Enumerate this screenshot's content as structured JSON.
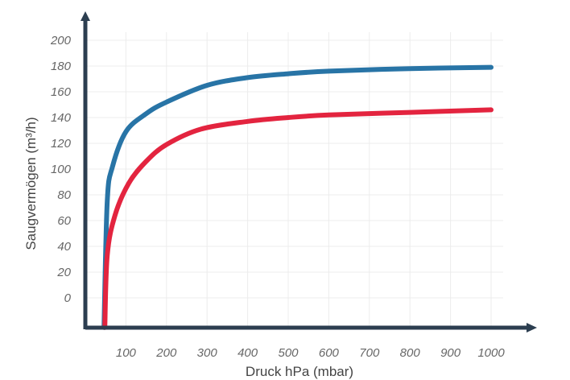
{
  "chart_data": {
    "type": "line",
    "title": "",
    "xlabel": "Druck hPa (mbar)",
    "ylabel": "Saugvermögen (m³/h)",
    "xlim": [
      0,
      1100
    ],
    "ylim": [
      -23,
      225
    ],
    "xticks": [
      "100",
      "200",
      "300",
      "400",
      "500",
      "600",
      "700",
      "800",
      "900",
      "1000"
    ],
    "yticks": [
      "0",
      "20",
      "40",
      "60",
      "80",
      "100",
      "120",
      "140",
      "160",
      "180",
      "200"
    ],
    "grid": true,
    "legend": "none",
    "series": [
      {
        "color": "#2874a6",
        "x": [
          46,
          54,
          67,
          100,
          150,
          200,
          300,
          400,
          500,
          600,
          800,
          1000
        ],
        "y": [
          -23,
          75,
          102,
          129,
          143,
          152,
          165,
          171,
          174,
          176,
          178,
          179
        ]
      },
      {
        "color": "#e3243f",
        "x": [
          48,
          54,
          73,
          107,
          150,
          200,
          285,
          400,
          500,
          600,
          800,
          1000
        ],
        "y": [
          -23,
          33,
          64,
          89,
          106,
          119,
          131,
          137,
          140,
          142,
          144,
          146
        ]
      }
    ],
    "axis_color": "#2c3e50"
  }
}
